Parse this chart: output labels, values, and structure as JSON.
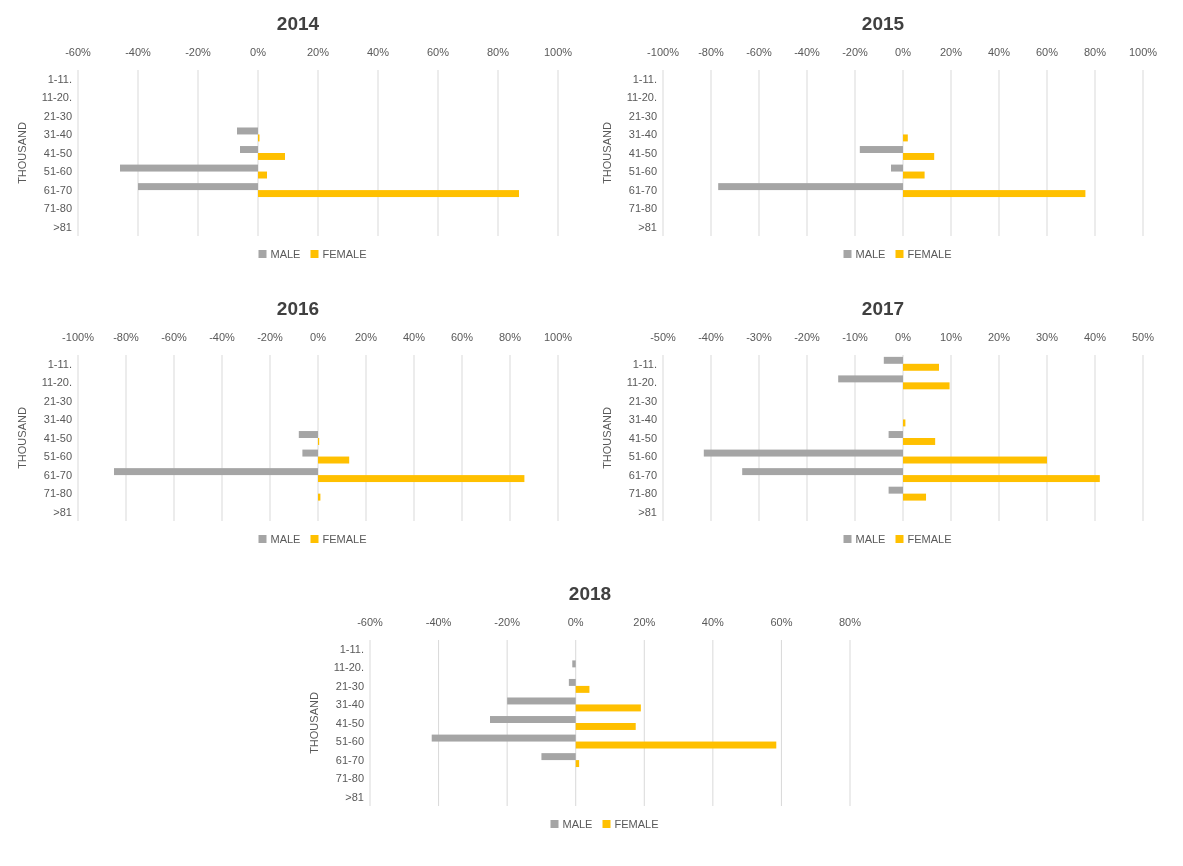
{
  "chart_data": [
    {
      "type": "bar",
      "orientation": "horizontal",
      "title": "2014",
      "ylabel": "THOUSAND",
      "categories": [
        "1-11.",
        "11-20.",
        "21-30",
        "31-40",
        "41-50",
        "51-60",
        "61-70",
        "71-80",
        ">81"
      ],
      "series": [
        {
          "name": "MALE",
          "color": "#a5a5a5",
          "values": [
            null,
            null,
            null,
            -7,
            -6,
            -46,
            -40,
            null,
            null
          ]
        },
        {
          "name": "FEMALE",
          "color": "#ffc000",
          "values": [
            null,
            null,
            null,
            0.5,
            9,
            3,
            87,
            null,
            null
          ]
        }
      ],
      "xlim": [
        -60,
        100
      ],
      "xticks": [
        {
          "value": -60,
          "label": "-60%"
        },
        {
          "value": -40,
          "label": "-40%"
        },
        {
          "value": -20,
          "label": "-20%"
        },
        {
          "value": 0,
          "label": "0%"
        },
        {
          "value": 20,
          "label": "20%"
        },
        {
          "value": 40,
          "label": "40%"
        },
        {
          "value": 60,
          "label": "60%"
        },
        {
          "value": 80,
          "label": "80%"
        },
        {
          "value": 100,
          "label": "100%"
        }
      ],
      "grid": "x",
      "legend": "bottom"
    },
    {
      "type": "bar",
      "orientation": "horizontal",
      "title": "2015",
      "ylabel": "THOUSAND",
      "categories": [
        "1-11.",
        "11-20.",
        "21-30",
        "31-40",
        "41-50",
        "51-60",
        "61-70",
        "71-80",
        ">81"
      ],
      "series": [
        {
          "name": "MALE",
          "color": "#a5a5a5",
          "values": [
            null,
            null,
            null,
            null,
            -18,
            -5,
            -77,
            null,
            null
          ]
        },
        {
          "name": "FEMALE",
          "color": "#ffc000",
          "values": [
            null,
            null,
            null,
            2,
            13,
            9,
            76,
            null,
            null
          ]
        }
      ],
      "xlim": [
        -100,
        100
      ],
      "xticks": [
        {
          "value": -100,
          "label": "-100%"
        },
        {
          "value": -80,
          "label": "-80%"
        },
        {
          "value": -60,
          "label": "-60%"
        },
        {
          "value": -40,
          "label": "-40%"
        },
        {
          "value": -20,
          "label": "-20%"
        },
        {
          "value": 0,
          "label": "0%"
        },
        {
          "value": 20,
          "label": "20%"
        },
        {
          "value": 40,
          "label": "40%"
        },
        {
          "value": 60,
          "label": "60%"
        },
        {
          "value": 80,
          "label": "80%"
        },
        {
          "value": 100,
          "label": "100%"
        }
      ],
      "grid": "x",
      "legend": "bottom"
    },
    {
      "type": "bar",
      "orientation": "horizontal",
      "title": "2016",
      "ylabel": "THOUSAND",
      "categories": [
        "1-11.",
        "11-20.",
        "21-30",
        "31-40",
        "41-50",
        "51-60",
        "61-70",
        "71-80",
        ">81"
      ],
      "series": [
        {
          "name": "MALE",
          "color": "#a5a5a5",
          "values": [
            null,
            null,
            null,
            null,
            -8,
            -6.5,
            -85,
            null,
            null
          ]
        },
        {
          "name": "FEMALE",
          "color": "#ffc000",
          "values": [
            null,
            null,
            null,
            null,
            0.5,
            13,
            86,
            1,
            null
          ]
        }
      ],
      "xlim": [
        -100,
        100
      ],
      "xticks": [
        {
          "value": -100,
          "label": "-100%"
        },
        {
          "value": -80,
          "label": "-80%"
        },
        {
          "value": -60,
          "label": "-60%"
        },
        {
          "value": -40,
          "label": "-40%"
        },
        {
          "value": -20,
          "label": "-20%"
        },
        {
          "value": 0,
          "label": "0%"
        },
        {
          "value": 20,
          "label": "20%"
        },
        {
          "value": 40,
          "label": "40%"
        },
        {
          "value": 60,
          "label": "60%"
        },
        {
          "value": 80,
          "label": "80%"
        },
        {
          "value": 100,
          "label": "100%"
        }
      ],
      "grid": "x",
      "legend": "bottom"
    },
    {
      "type": "bar",
      "orientation": "horizontal",
      "title": "2017",
      "ylabel": "THOUSAND",
      "categories": [
        "1-11.",
        "11-20.",
        "21-30",
        "31-40",
        "41-50",
        "51-60",
        "61-70",
        "71-80",
        ">81"
      ],
      "series": [
        {
          "name": "MALE",
          "color": "#a5a5a5",
          "values": [
            -4,
            -13.5,
            null,
            null,
            -3,
            -41.5,
            -33.5,
            -3,
            null
          ]
        },
        {
          "name": "FEMALE",
          "color": "#ffc000",
          "values": [
            7.5,
            9.7,
            null,
            0.5,
            6.7,
            30,
            41,
            4.8,
            null
          ]
        }
      ],
      "xlim": [
        -50,
        50
      ],
      "xticks": [
        {
          "value": -50,
          "label": "-50%"
        },
        {
          "value": -40,
          "label": "-40%"
        },
        {
          "value": -30,
          "label": "-30%"
        },
        {
          "value": -20,
          "label": "-20%"
        },
        {
          "value": -10,
          "label": "-10%"
        },
        {
          "value": 0,
          "label": "0%"
        },
        {
          "value": 10,
          "label": "10%"
        },
        {
          "value": 20,
          "label": "20%"
        },
        {
          "value": 30,
          "label": "30%"
        },
        {
          "value": 40,
          "label": "40%"
        },
        {
          "value": 50,
          "label": "50%"
        }
      ],
      "grid": "x",
      "legend": "bottom"
    },
    {
      "type": "bar",
      "orientation": "horizontal",
      "title": "2018",
      "ylabel": "THOUSAND",
      "categories": [
        "1-11.",
        "11-20.",
        "21-30",
        "31-40",
        "41-50",
        "51-60",
        "61-70",
        "71-80",
        ">81"
      ],
      "series": [
        {
          "name": "MALE",
          "color": "#a5a5a5",
          "values": [
            null,
            -1,
            -2,
            -20,
            -25,
            -42,
            -10,
            null,
            null
          ]
        },
        {
          "name": "FEMALE",
          "color": "#ffc000",
          "values": [
            null,
            null,
            4,
            19,
            17.5,
            58.5,
            1,
            null,
            null
          ]
        }
      ],
      "xlim": [
        -60,
        80
      ],
      "xticks": [
        {
          "value": -60,
          "label": "-60%"
        },
        {
          "value": -40,
          "label": "-40%"
        },
        {
          "value": -20,
          "label": "-20%"
        },
        {
          "value": 0,
          "label": "0%"
        },
        {
          "value": 20,
          "label": "20%"
        },
        {
          "value": 40,
          "label": "40%"
        },
        {
          "value": 60,
          "label": "60%"
        },
        {
          "value": 80,
          "label": "80%"
        }
      ],
      "grid": "x",
      "legend": "bottom"
    }
  ]
}
